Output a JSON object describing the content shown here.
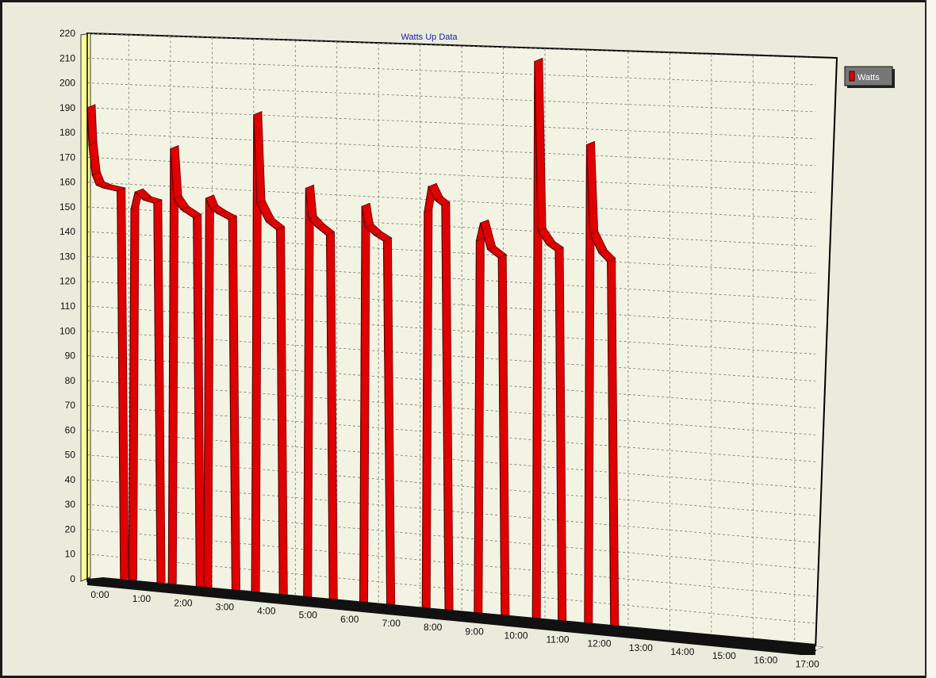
{
  "chart_data": {
    "type": "area",
    "title": "Watts Up Data",
    "xlabel": "",
    "ylabel": "",
    "ylim": [
      0,
      220
    ],
    "y_ticks": [
      0,
      10,
      20,
      30,
      40,
      50,
      60,
      70,
      80,
      90,
      100,
      110,
      120,
      130,
      140,
      150,
      160,
      170,
      180,
      190,
      200,
      210,
      220
    ],
    "x_ticks": [
      "0:00",
      "1:00",
      "2:00",
      "3:00",
      "4:00",
      "5:00",
      "6:00",
      "7:00",
      "8:00",
      "9:00",
      "10:00",
      "11:00",
      "12:00",
      "13:00",
      "14:00",
      "15:00",
      "16:00",
      "17:00"
    ],
    "xlim": [
      0,
      17.5
    ],
    "grid": true,
    "legend_position": "top-right",
    "series": [
      {
        "name": "Watts",
        "color": "#e00000",
        "points": [
          [
            0.0,
            190
          ],
          [
            0.04,
            175
          ],
          [
            0.12,
            163
          ],
          [
            0.22,
            159
          ],
          [
            0.38,
            158
          ],
          [
            0.72,
            157
          ],
          [
            0.8,
            0
          ],
          [
            1.0,
            0
          ],
          [
            1.05,
            150
          ],
          [
            1.15,
            157
          ],
          [
            1.35,
            154
          ],
          [
            1.6,
            153
          ],
          [
            1.68,
            0
          ],
          [
            1.95,
            0
          ],
          [
            2.0,
            175
          ],
          [
            2.08,
            155
          ],
          [
            2.25,
            151
          ],
          [
            2.55,
            148
          ],
          [
            2.62,
            0
          ],
          [
            2.8,
            0
          ],
          [
            2.85,
            156
          ],
          [
            2.95,
            152
          ],
          [
            3.15,
            150
          ],
          [
            3.4,
            148
          ],
          [
            3.48,
            0
          ],
          [
            3.95,
            0
          ],
          [
            4.0,
            190
          ],
          [
            4.08,
            155
          ],
          [
            4.3,
            148
          ],
          [
            4.55,
            145
          ],
          [
            4.62,
            0
          ],
          [
            5.2,
            0
          ],
          [
            5.25,
            162
          ],
          [
            5.32,
            150
          ],
          [
            5.5,
            147
          ],
          [
            5.75,
            144
          ],
          [
            5.82,
            0
          ],
          [
            6.55,
            0
          ],
          [
            6.6,
            156
          ],
          [
            6.68,
            148
          ],
          [
            6.9,
            145
          ],
          [
            7.12,
            143
          ],
          [
            7.2,
            0
          ],
          [
            8.05,
            0
          ],
          [
            8.1,
            155
          ],
          [
            8.2,
            165
          ],
          [
            8.35,
            160
          ],
          [
            8.52,
            158
          ],
          [
            8.6,
            0
          ],
          [
            9.3,
            0
          ],
          [
            9.35,
            145
          ],
          [
            9.45,
            152
          ],
          [
            9.62,
            142
          ],
          [
            9.88,
            139
          ],
          [
            9.95,
            0
          ],
          [
            10.7,
            0
          ],
          [
            10.75,
            215
          ],
          [
            10.83,
            150
          ],
          [
            11.05,
            145
          ],
          [
            11.25,
            143
          ],
          [
            11.32,
            0
          ],
          [
            11.95,
            0
          ],
          [
            12.0,
            184
          ],
          [
            12.08,
            150
          ],
          [
            12.3,
            143
          ],
          [
            12.5,
            140
          ],
          [
            12.58,
            0
          ],
          [
            13.0,
            0
          ],
          [
            17.5,
            0
          ]
        ]
      }
    ]
  }
}
